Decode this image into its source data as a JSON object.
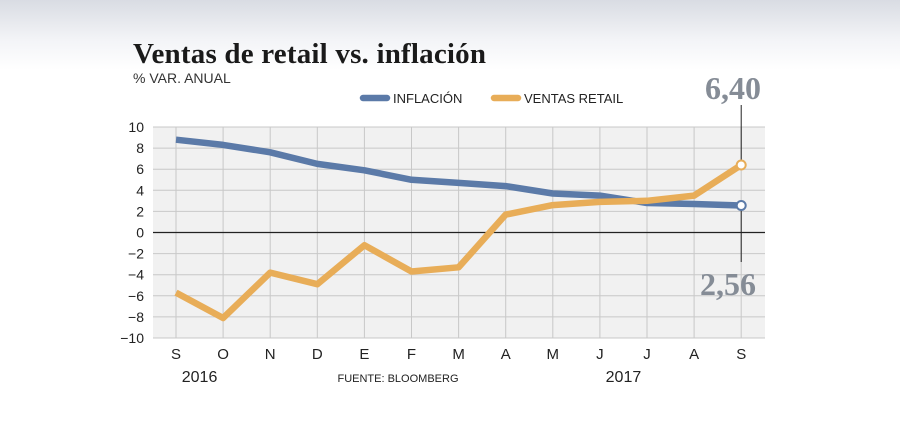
{
  "chart_data": {
    "type": "line",
    "title": "Ventas de retail vs. inflación",
    "subtitle": "% VAR. ANUAL",
    "categories": [
      "S",
      "O",
      "N",
      "D",
      "E",
      "F",
      "M",
      "A",
      "M",
      "J",
      "J",
      "A",
      "S"
    ],
    "years": [
      {
        "label": "2016",
        "category_index": 0.5
      },
      {
        "label": "2017",
        "category_index": 9.5
      }
    ],
    "series": [
      {
        "name": "INFLACIÓN",
        "color": "#5b7aa8",
        "values": [
          8.8,
          8.3,
          7.6,
          6.5,
          5.9,
          5.0,
          4.7,
          4.4,
          3.7,
          3.5,
          2.8,
          2.7,
          2.56
        ]
      },
      {
        "name": "VENTAS RETAIL",
        "color": "#e8ad58",
        "values": [
          -5.7,
          -8.1,
          -3.8,
          -4.9,
          -1.2,
          -3.7,
          -3.3,
          1.7,
          2.6,
          2.9,
          3.0,
          3.5,
          6.4
        ]
      }
    ],
    "ylim": [
      -10,
      10
    ],
    "yticks": [
      10,
      8,
      6,
      4,
      2,
      0,
      -2,
      -4,
      -6,
      -8,
      -10
    ],
    "grid": true,
    "legend": "top-center",
    "callouts": [
      {
        "series_index": 1,
        "text": "6,40",
        "placement": "above"
      },
      {
        "series_index": 0,
        "text": "2,56",
        "placement": "below"
      }
    ],
    "source": "FUENTE: BLOOMBERG",
    "callout_color": "#858c96"
  }
}
